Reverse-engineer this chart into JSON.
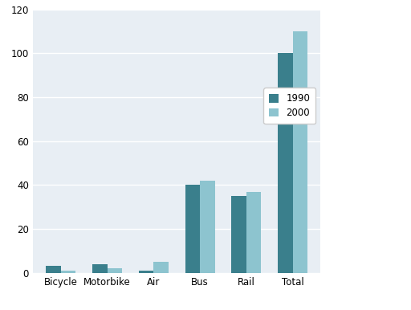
{
  "categories": [
    "Bicycle",
    "Motorbike",
    "Air",
    "Bus",
    "Rail",
    "Total"
  ],
  "values_1990": [
    3,
    4,
    1,
    40,
    35,
    100
  ],
  "values_2000": [
    1,
    2,
    5,
    42,
    37,
    110
  ],
  "color_1990": "#3a7f8c",
  "color_2000": "#8dc4cf",
  "ylim": [
    0,
    120
  ],
  "yticks": [
    0,
    20,
    40,
    60,
    80,
    100,
    120
  ],
  "legend_labels": [
    "1990",
    "2000"
  ],
  "plot_bg": "#e8eef4",
  "figure_bg": "#ffffff",
  "grid_color": "#ffffff",
  "bar_width": 0.32,
  "border_color": "#b0b8c8"
}
